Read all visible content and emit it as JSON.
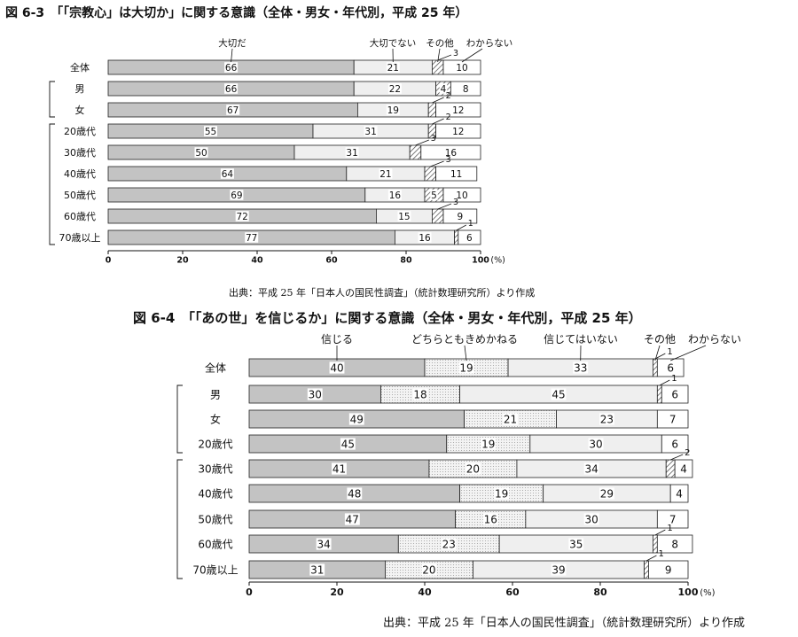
{
  "colors": {
    "seg1": "#c3c3c3",
    "seg2": "#efefef",
    "seg3_dots": "#d6d6d6",
    "other_hatch": "#444444",
    "bar_border": "#222222"
  },
  "fig1": {
    "title": "図 6-3　「「宗教心」は大切か」に関する意識（全体・男女・年代別，平成 25 年）",
    "source": "出典：平成 25 年「日本人の国民性調査」（統計数理研究所）より作成"
  },
  "fig2": {
    "title": "図 6-4　「「あの世」を信じるか」に関する意識（全体・男女・年代別，平成 25 年）",
    "source": "出典：平成 25 年「日本人の国民性調査」（統計数理研究所）より作成"
  },
  "chart_data": [
    {
      "type": "bar",
      "orientation": "horizontal-stacked",
      "title": "図 6-3　「「宗教心」は大切か」に関する意識（全体・男女・年代別，平成 25 年）",
      "categories": [
        "全体",
        "男",
        "女",
        "20歳代",
        "30歳代",
        "40歳代",
        "50歳代",
        "60歳代",
        "70歳以上"
      ],
      "series": [
        {
          "name": "大切だ",
          "values": [
            66,
            66,
            67,
            55,
            50,
            64,
            69,
            72,
            77
          ]
        },
        {
          "name": "大切でない",
          "values": [
            21,
            22,
            19,
            31,
            31,
            21,
            16,
            15,
            16
          ]
        },
        {
          "name": "その他",
          "values": [
            3,
            4,
            2,
            2,
            3,
            3,
            5,
            3,
            1
          ]
        },
        {
          "name": "わからない",
          "values": [
            10,
            8,
            12,
            12,
            16,
            11,
            10,
            9,
            6
          ]
        }
      ],
      "xlim": [
        0,
        100
      ],
      "xticks": [
        "0",
        "20",
        "40",
        "60",
        "80",
        "100"
      ],
      "unit": "(%)",
      "grid": false
    },
    {
      "type": "bar",
      "orientation": "horizontal-stacked",
      "title": "図 6-4　「「あの世」を信じるか」に関する意識（全体・男女・年代別，平成 25 年）",
      "categories": [
        "全体",
        "男",
        "女",
        "20歳代",
        "30歳代",
        "40歳代",
        "50歳代",
        "60歳代",
        "70歳以上"
      ],
      "series": [
        {
          "name": "信じる",
          "values": [
            40,
            30,
            49,
            45,
            41,
            48,
            47,
            34,
            31
          ]
        },
        {
          "name": "どちらともきめかねる",
          "values": [
            19,
            18,
            21,
            19,
            20,
            19,
            16,
            23,
            20
          ]
        },
        {
          "name": "信じてはいない",
          "values": [
            33,
            45,
            23,
            30,
            34,
            29,
            30,
            35,
            39
          ]
        },
        {
          "name": "その他",
          "values": [
            1,
            1,
            0,
            0,
            2,
            0,
            0,
            1,
            1
          ]
        },
        {
          "name": "わからない",
          "values": [
            6,
            6,
            7,
            6,
            4,
            4,
            7,
            8,
            9
          ]
        }
      ],
      "xlim": [
        0,
        100
      ],
      "xticks": [
        "0",
        "20",
        "40",
        "60",
        "80",
        "100"
      ],
      "unit": "(%)",
      "grid": false
    }
  ]
}
